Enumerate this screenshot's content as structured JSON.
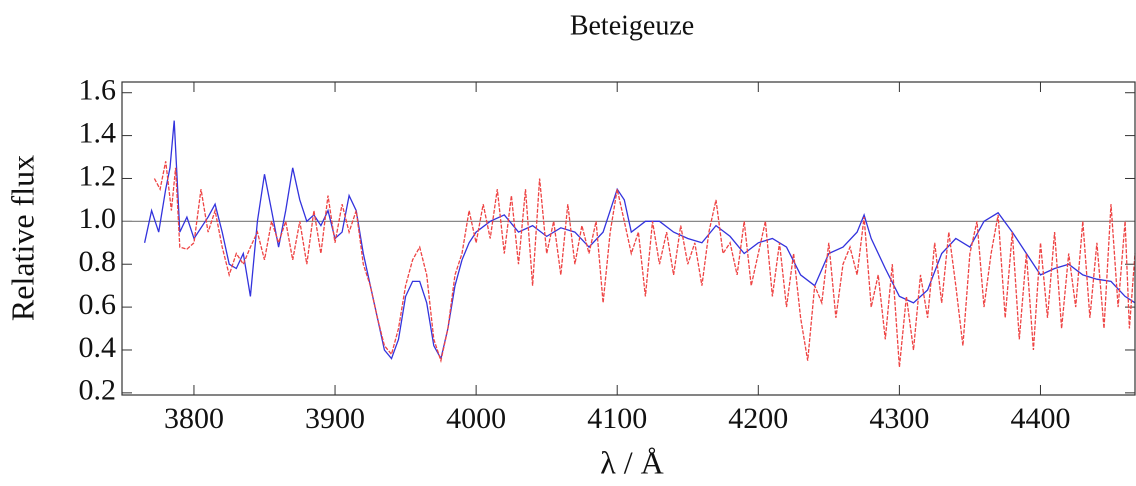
{
  "chart_data": {
    "type": "line",
    "title": "Beteigeuze",
    "xlabel": "λ / Å",
    "ylabel": "Relative flux",
    "xlim": [
      3749,
      4467
    ],
    "xticks": [
      3800,
      3900,
      4000,
      4100,
      4200,
      4300,
      4400
    ],
    "ylim": [
      0.19,
      1.65
    ],
    "yticks": [
      0.2,
      0.4,
      0.6,
      0.8,
      {
        "value": 1,
        "label": "1.0"
      },
      1.2,
      1.4,
      1.6
    ],
    "reference_line": 1,
    "series": [
      {
        "color": "#3333dd",
        "x": [
          3765,
          3770,
          3775,
          3780,
          3783,
          3786,
          3790,
          3795,
          3800,
          3810,
          3815,
          3820,
          3825,
          3830,
          3835,
          3840,
          3845,
          3850,
          3855,
          3860,
          3865,
          3870,
          3875,
          3880,
          3885,
          3890,
          3895,
          3900,
          3905,
          3910,
          3915,
          3920,
          3930,
          3935,
          3940,
          3945,
          3950,
          3955,
          3960,
          3965,
          3970,
          3975,
          3980,
          3985,
          3990,
          3995,
          4000,
          4010,
          4020,
          4030,
          4040,
          4050,
          4060,
          4070,
          4080,
          4090,
          4095,
          4100,
          4105,
          4110,
          4120,
          4130,
          4140,
          4150,
          4160,
          4170,
          4180,
          4190,
          4200,
          4210,
          4220,
          4230,
          4240,
          4250,
          4260,
          4270,
          4275,
          4280,
          4290,
          4300,
          4310,
          4320,
          4330,
          4340,
          4350,
          4360,
          4370,
          4380,
          4390,
          4400,
          4410,
          4420,
          4430,
          4440,
          4450,
          4460,
          4467
        ],
        "values": [
          0.9,
          1.05,
          0.95,
          1.15,
          1.25,
          1.47,
          0.95,
          1.02,
          0.92,
          1.02,
          1.08,
          0.95,
          0.8,
          0.78,
          0.85,
          0.65,
          1.0,
          1.22,
          1.05,
          0.88,
          1.05,
          1.25,
          1.1,
          1.0,
          1.03,
          0.98,
          1.05,
          0.92,
          0.95,
          1.12,
          1.05,
          0.85,
          0.55,
          0.4,
          0.36,
          0.45,
          0.65,
          0.72,
          0.72,
          0.62,
          0.42,
          0.36,
          0.5,
          0.7,
          0.82,
          0.9,
          0.95,
          1.0,
          1.03,
          0.95,
          0.98,
          0.93,
          0.97,
          0.95,
          0.88,
          0.95,
          1.05,
          1.15,
          1.1,
          0.95,
          1.0,
          1.0,
          0.95,
          0.92,
          0.9,
          0.98,
          0.93,
          0.85,
          0.9,
          0.92,
          0.88,
          0.75,
          0.7,
          0.85,
          0.88,
          0.95,
          1.03,
          0.92,
          0.78,
          0.65,
          0.62,
          0.68,
          0.85,
          0.92,
          0.88,
          1.0,
          1.04,
          0.95,
          0.85,
          0.75,
          0.78,
          0.8,
          0.75,
          0.73,
          0.72,
          0.65,
          0.62
        ]
      },
      {
        "color": "#ee4444",
        "x": [
          3772,
          3776,
          3780,
          3784,
          3787,
          3790,
          3795,
          3800,
          3805,
          3810,
          3815,
          3820,
          3825,
          3830,
          3835,
          3840,
          3845,
          3850,
          3855,
          3860,
          3865,
          3870,
          3875,
          3880,
          3885,
          3890,
          3895,
          3900,
          3905,
          3910,
          3915,
          3920,
          3925,
          3930,
          3935,
          3940,
          3945,
          3950,
          3955,
          3960,
          3965,
          3970,
          3975,
          3980,
          3985,
          3990,
          3995,
          4000,
          4005,
          4010,
          4015,
          4020,
          4025,
          4030,
          4035,
          4040,
          4045,
          4050,
          4055,
          4060,
          4065,
          4070,
          4075,
          4080,
          4085,
          4090,
          4095,
          4100,
          4105,
          4110,
          4115,
          4120,
          4125,
          4130,
          4135,
          4140,
          4145,
          4150,
          4155,
          4160,
          4165,
          4170,
          4175,
          4180,
          4185,
          4190,
          4195,
          4200,
          4205,
          4210,
          4215,
          4220,
          4225,
          4230,
          4235,
          4240,
          4245,
          4250,
          4255,
          4260,
          4265,
          4270,
          4275,
          4280,
          4285,
          4290,
          4295,
          4300,
          4305,
          4310,
          4315,
          4320,
          4325,
          4330,
          4335,
          4340,
          4345,
          4350,
          4355,
          4360,
          4365,
          4370,
          4375,
          4380,
          4385,
          4390,
          4395,
          4400,
          4405,
          4410,
          4415,
          4420,
          4425,
          4430,
          4435,
          4440,
          4445,
          4450,
          4455,
          4460,
          4463,
          4467
        ],
        "values": [
          1.2,
          1.15,
          1.28,
          1.05,
          1.25,
          0.88,
          0.87,
          0.9,
          1.15,
          0.95,
          1.05,
          0.88,
          0.75,
          0.85,
          0.8,
          0.88,
          0.95,
          0.82,
          1.0,
          0.9,
          1.0,
          0.82,
          1.0,
          0.8,
          1.05,
          0.85,
          1.12,
          0.9,
          1.08,
          0.95,
          1.05,
          0.8,
          0.7,
          0.55,
          0.42,
          0.38,
          0.5,
          0.7,
          0.82,
          0.88,
          0.75,
          0.45,
          0.35,
          0.5,
          0.75,
          0.85,
          1.05,
          0.9,
          1.08,
          0.92,
          1.15,
          0.85,
          1.12,
          0.8,
          1.15,
          0.7,
          1.2,
          0.85,
          1.0,
          0.75,
          1.08,
          0.8,
          0.98,
          0.85,
          1.0,
          0.62,
          0.95,
          1.15,
          1.0,
          0.85,
          0.95,
          0.65,
          1.0,
          0.8,
          0.95,
          0.75,
          0.98,
          0.8,
          0.9,
          0.7,
          0.95,
          1.1,
          0.85,
          0.9,
          0.75,
          1.0,
          0.7,
          0.85,
          1.0,
          0.65,
          0.9,
          0.6,
          0.85,
          0.55,
          0.35,
          0.7,
          0.62,
          0.9,
          0.55,
          0.8,
          0.88,
          0.75,
          1.02,
          0.6,
          0.75,
          0.45,
          0.8,
          0.32,
          0.65,
          0.4,
          0.75,
          0.55,
          0.9,
          0.62,
          0.95,
          0.7,
          0.42,
          0.85,
          1.0,
          0.6,
          0.85,
          1.03,
          0.55,
          0.95,
          0.45,
          0.85,
          0.4,
          0.9,
          0.55,
          0.95,
          0.5,
          0.85,
          0.6,
          1.0,
          0.55,
          0.9,
          0.5,
          1.08,
          0.6,
          1.0,
          0.5,
          0.85
        ]
      }
    ]
  }
}
